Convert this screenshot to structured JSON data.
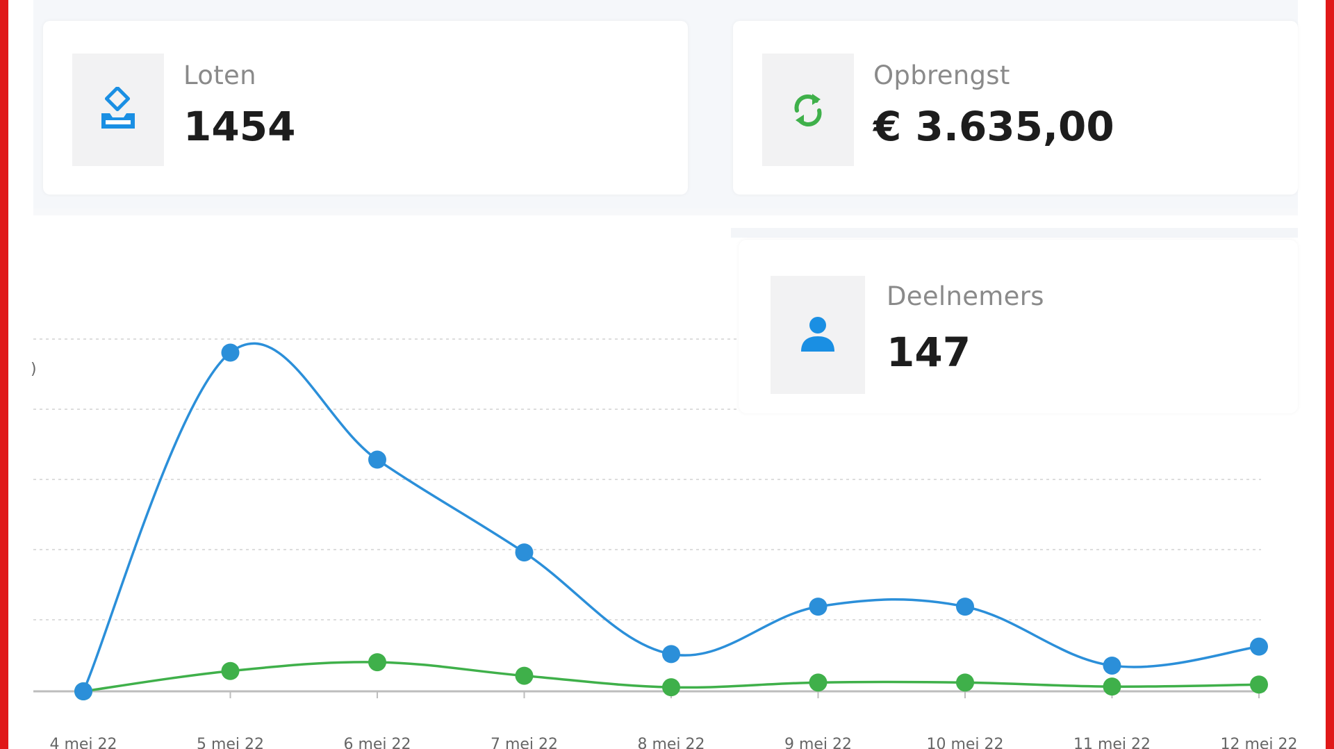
{
  "cards": [
    {
      "label": "Loten",
      "value": "1454",
      "icon": "ballot-box-icon",
      "icon_color": "#1a8fe3"
    },
    {
      "label": "Opbrengst",
      "value": "€ 3.635,00",
      "icon": "refresh-icon",
      "icon_color": "#3fb04a"
    },
    {
      "label": "Deelnemers",
      "value": "147",
      "icon": "user-icon",
      "icon_color": "#1a8fe3"
    }
  ],
  "chart_data": {
    "type": "line",
    "categories": [
      "4 mei 22",
      "5 mei 22",
      "6 mei 22",
      "7 mei 22",
      "8 mei 22",
      "9 mei 22",
      "10 mei 22",
      "11 mei 22",
      "12 mei 22"
    ],
    "series": [
      {
        "color": "#2b8fd9",
        "values": [
          0,
          500,
          342,
          205,
          55,
          125,
          125,
          38,
          66
        ]
      },
      {
        "color": "#3fb04a",
        "values": [
          0,
          30,
          43,
          23,
          6,
          13,
          13,
          7,
          10
        ]
      }
    ],
    "ylim": [
      0,
      520
    ],
    "grid": true
  }
}
